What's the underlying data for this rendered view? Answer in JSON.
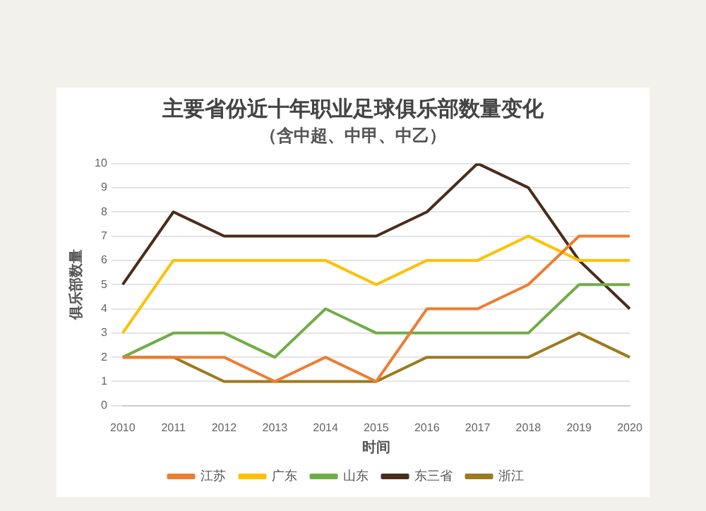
{
  "chart_data": {
    "type": "line",
    "title": "主要省份近十年职业足球俱乐部数量变化",
    "subtitle": "（含中超、中甲、中乙）",
    "xlabel": "时间",
    "ylabel": "俱乐部数量",
    "categories": [
      "2010",
      "2011",
      "2012",
      "2013",
      "2014",
      "2015",
      "2016",
      "2017",
      "2018",
      "2019",
      "2020"
    ],
    "series": [
      {
        "name": "江苏",
        "color": "#ed7d31",
        "values": [
          2,
          2,
          2,
          1,
          2,
          1,
          4,
          4,
          5,
          7,
          7
        ]
      },
      {
        "name": "广东",
        "color": "#ffc000",
        "values": [
          3,
          6,
          6,
          6,
          6,
          5,
          6,
          6,
          7,
          6,
          6
        ]
      },
      {
        "name": "山东",
        "color": "#70ad47",
        "values": [
          2,
          3,
          3,
          2,
          4,
          3,
          3,
          3,
          3,
          5,
          5
        ]
      },
      {
        "name": "东三省",
        "color": "#4a2c1a",
        "values": [
          5,
          8,
          7,
          7,
          7,
          7,
          8,
          10,
          9,
          6,
          4
        ]
      },
      {
        "name": "浙江",
        "color": "#9c7a1e",
        "values": [
          2,
          2,
          1,
          1,
          1,
          1,
          2,
          2,
          2,
          3,
          2
        ]
      }
    ],
    "ylim": [
      0,
      10
    ],
    "yticks": [
      0,
      1,
      2,
      3,
      4,
      5,
      6,
      7,
      8,
      9,
      10
    ],
    "grid": "y",
    "legend": "bottom",
    "marker": "none",
    "line_style": "solid"
  }
}
